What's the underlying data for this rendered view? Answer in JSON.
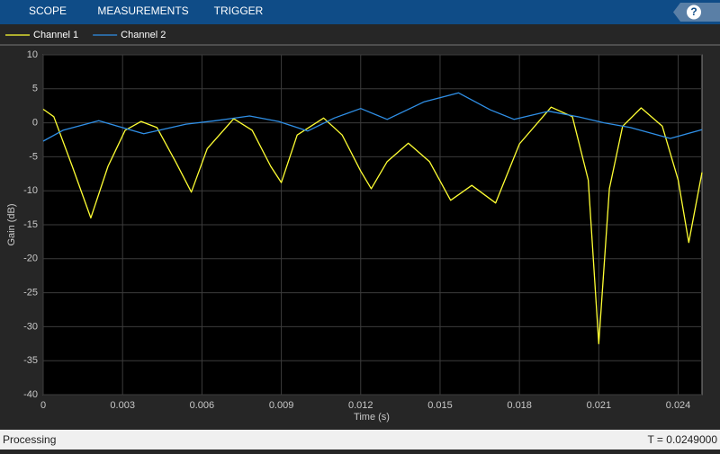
{
  "toolbar": {
    "tabs": [
      "SCOPE",
      "MEASUREMENTS",
      "TRIGGER"
    ],
    "help": "?"
  },
  "chart_data": {
    "type": "line",
    "xlabel": "Time (s)",
    "ylabel": "Gain (dB)",
    "xlim": [
      0,
      0.0249
    ],
    "xticks": [
      0,
      0.003,
      0.006,
      0.009,
      0.012,
      0.015,
      0.018,
      0.021,
      0.024
    ],
    "ylim": [
      -40,
      10
    ],
    "yticks": [
      10,
      5,
      0,
      -5,
      -10,
      -15,
      -20,
      -25,
      -30,
      -35,
      -40
    ],
    "grid": true,
    "legend": "top-left",
    "series": [
      {
        "name": "Channel 1",
        "color": "#ffff33",
        "x": [
          0,
          0.0004,
          0.0011,
          0.0018,
          0.00245,
          0.0031,
          0.0037,
          0.0043,
          0.005,
          0.0056,
          0.0062,
          0.0072,
          0.0079,
          0.0086,
          0.009,
          0.0096,
          0.0106,
          0.0113,
          0.012,
          0.0124,
          0.013,
          0.0138,
          0.0146,
          0.0154,
          0.0162,
          0.0171,
          0.018,
          0.0192,
          0.02,
          0.0206,
          0.021,
          0.0214,
          0.0219,
          0.0226,
          0.0234,
          0.024,
          0.0244,
          0.0249
        ],
        "values": [
          2,
          0.9,
          -6.4,
          -14,
          -6.4,
          -1.1,
          0.2,
          -0.7,
          -5.7,
          -10.2,
          -3.8,
          0.6,
          -1.1,
          -6.4,
          -8.8,
          -1.8,
          0.7,
          -1.8,
          -7.1,
          -9.7,
          -5.7,
          -3,
          -5.7,
          -11.4,
          -9.2,
          -11.8,
          -3.1,
          2.3,
          0.9,
          -8.4,
          -32.5,
          -9.7,
          -0.5,
          2.2,
          -0.5,
          -8.4,
          -17.6,
          -7.3
        ]
      },
      {
        "name": "Channel 2",
        "color": "#2f8fe6",
        "x": [
          0,
          0.00075,
          0.0021,
          0.0038,
          0.0054,
          0.0065,
          0.0078,
          0.0089,
          0.01,
          0.011,
          0.012,
          0.013,
          0.0144,
          0.0157,
          0.0169,
          0.0178,
          0.0191,
          0.0202,
          0.0212,
          0.0222,
          0.0237,
          0.0249
        ],
        "values": [
          -2.7,
          -1.1,
          0.3,
          -1.6,
          -0.2,
          0.3,
          1,
          0.2,
          -1.2,
          0.7,
          2.1,
          0.5,
          3.1,
          4.4,
          1.9,
          0.5,
          1.7,
          0.9,
          0,
          -0.7,
          -2.3,
          -1
        ]
      }
    ]
  },
  "status": {
    "left": "Processing",
    "right": "T = 0.0249000"
  }
}
